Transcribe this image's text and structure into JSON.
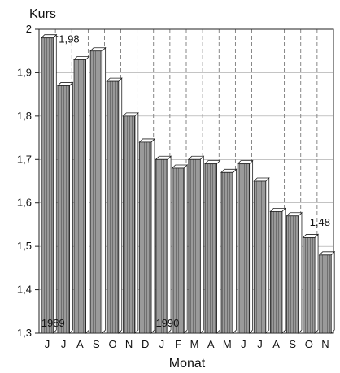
{
  "chart_data": {
    "type": "bar",
    "ylabel": "Kurs",
    "xlabel": "Monat",
    "ylim": [
      1.3,
      2.0
    ],
    "yticks": [
      "1,3",
      "1,4",
      "1,5",
      "1,6",
      "1,7",
      "1,8",
      "1,9",
      "2"
    ],
    "categories": [
      "J",
      "J",
      "A",
      "S",
      "O",
      "N",
      "D",
      "J",
      "F",
      "M",
      "A",
      "M",
      "J",
      "J",
      "A",
      "S",
      "O",
      "N"
    ],
    "values": [
      1.98,
      1.87,
      1.93,
      1.95,
      1.88,
      1.8,
      1.74,
      1.7,
      1.68,
      1.7,
      1.69,
      1.67,
      1.69,
      1.65,
      1.58,
      1.57,
      1.52,
      1.48
    ],
    "data_labels": [
      {
        "index": 0,
        "text": "1,98"
      },
      {
        "index": 17,
        "text": "1,48"
      }
    ],
    "year_labels": [
      {
        "index": 0,
        "text": "1989"
      },
      {
        "index": 7,
        "text": "1990"
      }
    ],
    "grid": "vertical-dashed",
    "style": "3d-hatched-bars"
  }
}
